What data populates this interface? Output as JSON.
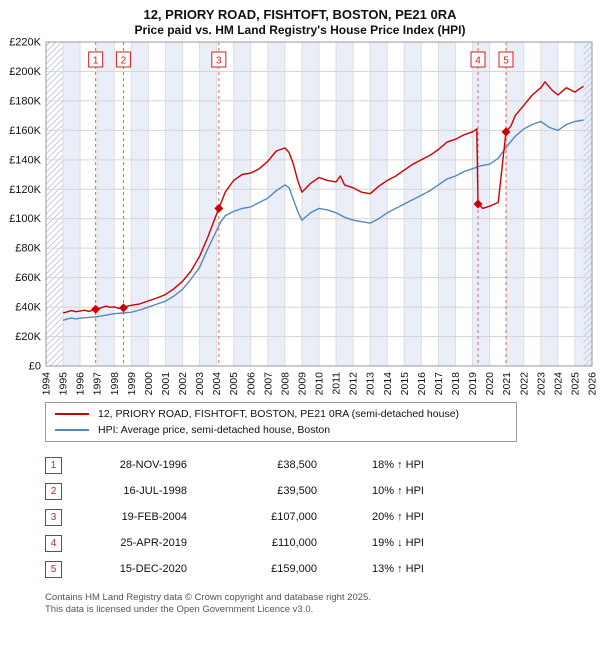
{
  "title": {
    "line1": "12, PRIORY ROAD, FISHTOFT, BOSTON, PE21 0RA",
    "line2": "Price paid vs. HM Land Registry's House Price Index (HPI)"
  },
  "chart_data": {
    "type": "line",
    "title": "12, PRIORY ROAD, FISHTOFT, BOSTON, PE21 0RA — Price paid vs. HM Land Registry's House Price Index (HPI)",
    "x_axis": {
      "min": 1994,
      "max": 2026,
      "ticks": [
        1994,
        1995,
        1996,
        1997,
        1998,
        1999,
        2000,
        2001,
        2002,
        2003,
        2004,
        2005,
        2006,
        2007,
        2008,
        2009,
        2010,
        2011,
        2012,
        2013,
        2014,
        2015,
        2016,
        2017,
        2018,
        2019,
        2020,
        2021,
        2022,
        2023,
        2024,
        2025,
        2026
      ]
    },
    "y_axis": {
      "min": 0,
      "max": 220000,
      "tick_step": 20000,
      "tick_labels": [
        "£0",
        "£20K",
        "£40K",
        "£60K",
        "£80K",
        "£100K",
        "£120K",
        "£140K",
        "£160K",
        "£180K",
        "£200K",
        "£220K"
      ]
    },
    "grid": true,
    "band_color": "#e9eef8",
    "hatch_regions": [
      [
        1994,
        1995
      ],
      [
        2025.5,
        2026
      ]
    ],
    "series": [
      {
        "name": "12, PRIORY ROAD, FISHTOFT, BOSTON, PE21 0RA (semi-detached house)",
        "color": "#cc0000",
        "points": [
          [
            1995,
            36000
          ],
          [
            1995.25,
            36800
          ],
          [
            1995.5,
            37600
          ],
          [
            1995.75,
            36900
          ],
          [
            1996,
            37300
          ],
          [
            1996.25,
            37900
          ],
          [
            1996.5,
            37100
          ],
          [
            1996.91,
            38500
          ],
          [
            1997.25,
            39600
          ],
          [
            1997.5,
            40600
          ],
          [
            1997.75,
            39900
          ],
          [
            1998,
            40100
          ],
          [
            1998.25,
            39200
          ],
          [
            1998.54,
            39500
          ],
          [
            1998.75,
            40600
          ],
          [
            1999,
            41200
          ],
          [
            1999.5,
            42200
          ],
          [
            2000,
            44200
          ],
          [
            2000.5,
            46200
          ],
          [
            2001,
            48500
          ],
          [
            2001.5,
            52500
          ],
          [
            2002,
            57500
          ],
          [
            2002.5,
            64500
          ],
          [
            2003,
            74500
          ],
          [
            2003.5,
            88000
          ],
          [
            2004.13,
            107000
          ],
          [
            2004.5,
            118000
          ],
          [
            2005,
            126000
          ],
          [
            2005.5,
            130000
          ],
          [
            2006,
            131000
          ],
          [
            2006.5,
            134000
          ],
          [
            2007,
            139000
          ],
          [
            2007.5,
            146000
          ],
          [
            2008,
            148000
          ],
          [
            2008.25,
            145000
          ],
          [
            2008.5,
            137000
          ],
          [
            2008.75,
            126000
          ],
          [
            2009,
            118000
          ],
          [
            2009.5,
            124000
          ],
          [
            2010,
            128000
          ],
          [
            2010.5,
            126000
          ],
          [
            2011,
            125000
          ],
          [
            2011.25,
            129000
          ],
          [
            2011.5,
            123000
          ],
          [
            2012,
            121000
          ],
          [
            2012.5,
            118000
          ],
          [
            2013,
            117000
          ],
          [
            2013.5,
            122000
          ],
          [
            2014,
            126000
          ],
          [
            2014.5,
            129000
          ],
          [
            2015,
            133000
          ],
          [
            2015.5,
            137000
          ],
          [
            2016,
            140000
          ],
          [
            2016.5,
            143000
          ],
          [
            2017,
            147000
          ],
          [
            2017.5,
            152000
          ],
          [
            2018,
            154000
          ],
          [
            2018.5,
            157000
          ],
          [
            2019,
            159000
          ],
          [
            2019.25,
            161000
          ],
          [
            2019.32,
            110000
          ],
          [
            2019.6,
            107000
          ],
          [
            2020,
            108500
          ],
          [
            2020.5,
            111000
          ],
          [
            2020.96,
            159000
          ],
          [
            2021.25,
            163000
          ],
          [
            2021.5,
            170000
          ],
          [
            2022,
            177000
          ],
          [
            2022.5,
            184000
          ],
          [
            2023,
            189000
          ],
          [
            2023.25,
            193000
          ],
          [
            2023.6,
            188000
          ],
          [
            2024,
            184000
          ],
          [
            2024.5,
            189000
          ],
          [
            2025,
            186000
          ],
          [
            2025.5,
            190000
          ]
        ]
      },
      {
        "name": "HPI: Average price, semi-detached house, Boston",
        "color": "#5588bb",
        "points": [
          [
            1995,
            31000
          ],
          [
            1995.25,
            32000
          ],
          [
            1995.5,
            32500
          ],
          [
            1995.75,
            32000
          ],
          [
            1996,
            32500
          ],
          [
            1996.5,
            33000
          ],
          [
            1997,
            33500
          ],
          [
            1997.5,
            34500
          ],
          [
            1998,
            35500
          ],
          [
            1998.5,
            36000
          ],
          [
            1999,
            36500
          ],
          [
            1999.5,
            38000
          ],
          [
            2000,
            40000
          ],
          [
            2000.5,
            42000
          ],
          [
            2001,
            44000
          ],
          [
            2001.5,
            47500
          ],
          [
            2002,
            52000
          ],
          [
            2002.5,
            59000
          ],
          [
            2003,
            67000
          ],
          [
            2003.5,
            80000
          ],
          [
            2004,
            92000
          ],
          [
            2004.25,
            98000
          ],
          [
            2004.5,
            102000
          ],
          [
            2005,
            105000
          ],
          [
            2005.5,
            107000
          ],
          [
            2006,
            108000
          ],
          [
            2006.5,
            111000
          ],
          [
            2007,
            114000
          ],
          [
            2007.5,
            119000
          ],
          [
            2008,
            123000
          ],
          [
            2008.25,
            121000
          ],
          [
            2008.5,
            113000
          ],
          [
            2008.75,
            105000
          ],
          [
            2009,
            99000
          ],
          [
            2009.5,
            104000
          ],
          [
            2010,
            107000
          ],
          [
            2010.5,
            106000
          ],
          [
            2011,
            104000
          ],
          [
            2011.5,
            101000
          ],
          [
            2012,
            99000
          ],
          [
            2012.5,
            98000
          ],
          [
            2013,
            97000
          ],
          [
            2013.5,
            100000
          ],
          [
            2014,
            104000
          ],
          [
            2014.5,
            107000
          ],
          [
            2015,
            110000
          ],
          [
            2015.5,
            113000
          ],
          [
            2016,
            116000
          ],
          [
            2016.5,
            119000
          ],
          [
            2017,
            123000
          ],
          [
            2017.5,
            127000
          ],
          [
            2018,
            129000
          ],
          [
            2018.5,
            132000
          ],
          [
            2019,
            134000
          ],
          [
            2019.5,
            136000
          ],
          [
            2020,
            137000
          ],
          [
            2020.5,
            141000
          ],
          [
            2021,
            149000
          ],
          [
            2021.5,
            156000
          ],
          [
            2022,
            161000
          ],
          [
            2022.5,
            164000
          ],
          [
            2023,
            166000
          ],
          [
            2023.5,
            162000
          ],
          [
            2024,
            160000
          ],
          [
            2024.5,
            164000
          ],
          [
            2025,
            166000
          ],
          [
            2025.5,
            167000
          ]
        ]
      }
    ],
    "sale_markers": [
      {
        "label": "1",
        "x": 1996.91,
        "y": 38500
      },
      {
        "label": "2",
        "x": 1998.54,
        "y": 39500
      },
      {
        "label": "3",
        "x": 2004.13,
        "y": 107000
      },
      {
        "label": "4",
        "x": 2019.32,
        "y": 110000
      },
      {
        "label": "5",
        "x": 2020.96,
        "y": 159000
      }
    ],
    "marker_line_color": "#dd6666",
    "legend_position": "bottom"
  },
  "legend": {
    "items": [
      {
        "label": "12, PRIORY ROAD, FISHTOFT, BOSTON, PE21 0RA (semi-detached house)",
        "color": "#cc0000"
      },
      {
        "label": "HPI: Average price, semi-detached house, Boston",
        "color": "#5588bb"
      }
    ]
  },
  "transactions": [
    {
      "num": "1",
      "date": "28-NOV-1996",
      "price": "£38,500",
      "hpi": "18% ↑ HPI"
    },
    {
      "num": "2",
      "date": "16-JUL-1998",
      "price": "£39,500",
      "hpi": "10% ↑ HPI"
    },
    {
      "num": "3",
      "date": "19-FEB-2004",
      "price": "£107,000",
      "hpi": "20% ↑ HPI"
    },
    {
      "num": "4",
      "date": "25-APR-2019",
      "price": "£110,000",
      "hpi": "19% ↓ HPI"
    },
    {
      "num": "5",
      "date": "15-DEC-2020",
      "price": "£159,000",
      "hpi": "13% ↑ HPI"
    }
  ],
  "footer": {
    "line1": "Contains HM Land Registry data © Crown copyright and database right 2025.",
    "line2": "This data is licensed under the Open Government Licence v3.0."
  }
}
